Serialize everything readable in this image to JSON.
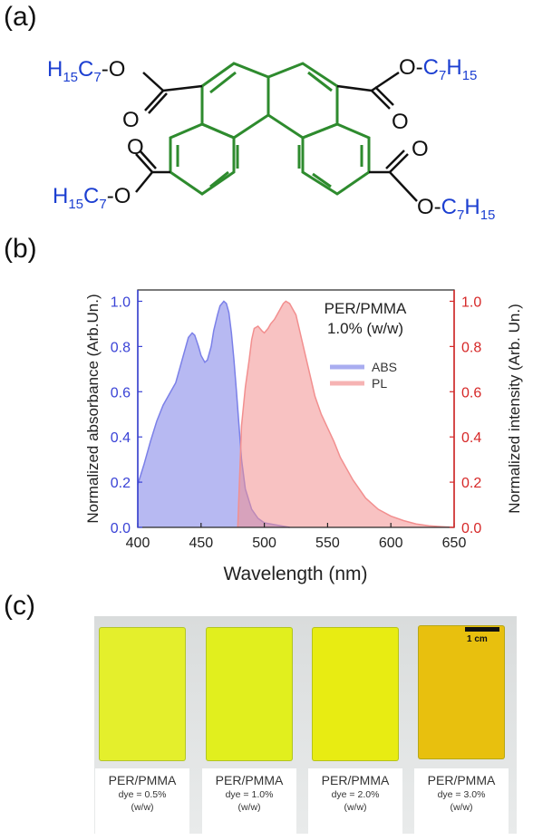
{
  "panels": {
    "a": "(a)",
    "b": "(b)",
    "c": "(c)"
  },
  "molecule": {
    "substituent_top_left": "H15C7-O",
    "substituent_top_right": "O-C7H15",
    "substituent_bottom_left": "H15C7-O",
    "substituent_bottom_right": "O-C7H15",
    "carbonyl_label": "O",
    "colors": {
      "core": "#2e8b2e",
      "alkyl": "#1c3fd1",
      "carbonyl": "#111111"
    }
  },
  "chart_data": {
    "type": "area",
    "annotation_line1": "PER/PMMA",
    "annotation_line2": "1.0% (w/w)",
    "xlabel": "Wavelength (nm)",
    "ylabel_left": "Normalized absorbance (Arb.Un.)",
    "ylabel_right": "Normalized intensity (Arb. Un.)",
    "xlim": [
      400,
      650
    ],
    "ylim": [
      0,
      1.05
    ],
    "xticks": [
      "400",
      "450",
      "500",
      "550",
      "600",
      "650"
    ],
    "yticks_left": [
      "0.0",
      "0.2",
      "0.4",
      "0.6",
      "0.8",
      "1.0"
    ],
    "yticks_right": [
      "0.0",
      "0.2",
      "0.4",
      "0.6",
      "0.8",
      "1.0"
    ],
    "legend_position": "right-middle",
    "series": [
      {
        "name": "ABS",
        "color": "#7b80e8",
        "axis": "left",
        "x": [
          400,
          405,
          410,
          415,
          420,
          425,
          430,
          435,
          440,
          443,
          445,
          448,
          450,
          453,
          455,
          458,
          460,
          463,
          465,
          468,
          470,
          472,
          474,
          476,
          478,
          480,
          482,
          485,
          490,
          495,
          500,
          510,
          520
        ],
        "y": [
          0.19,
          0.28,
          0.38,
          0.47,
          0.54,
          0.59,
          0.64,
          0.74,
          0.84,
          0.86,
          0.85,
          0.8,
          0.76,
          0.73,
          0.74,
          0.8,
          0.87,
          0.94,
          0.98,
          1.0,
          0.99,
          0.95,
          0.86,
          0.74,
          0.6,
          0.45,
          0.3,
          0.17,
          0.08,
          0.04,
          0.02,
          0.01,
          0.0
        ]
      },
      {
        "name": "PL",
        "color": "#f28f8f",
        "axis": "right",
        "x": [
          479,
          480,
          482,
          485,
          488,
          490,
          492,
          495,
          498,
          500,
          503,
          505,
          508,
          510,
          513,
          515,
          517,
          520,
          522,
          525,
          530,
          535,
          540,
          545,
          550,
          555,
          560,
          570,
          580,
          590,
          600,
          610,
          620,
          630,
          640,
          650
        ],
        "y": [
          0.0,
          0.15,
          0.45,
          0.62,
          0.74,
          0.83,
          0.88,
          0.89,
          0.87,
          0.86,
          0.88,
          0.9,
          0.92,
          0.94,
          0.97,
          0.99,
          1.0,
          0.99,
          0.97,
          0.94,
          0.82,
          0.7,
          0.58,
          0.5,
          0.44,
          0.38,
          0.31,
          0.21,
          0.13,
          0.08,
          0.05,
          0.03,
          0.015,
          0.007,
          0.003,
          0.0
        ]
      }
    ]
  },
  "photo": {
    "scale_label": "1 cm",
    "samples": [
      {
        "label": "PER/PMMA",
        "dye": "dye = 0.5%",
        "unit": "(w/w)",
        "color": "#e4ef2c"
      },
      {
        "label": "PER/PMMA",
        "dye": "dye = 1.0%",
        "unit": "(w/w)",
        "color": "#e1ef1e"
      },
      {
        "label": "PER/PMMA",
        "dye": "dye = 2.0%",
        "unit": "(w/w)",
        "color": "#e8ec12"
      },
      {
        "label": "PER/PMMA",
        "dye": "dye = 3.0%",
        "unit": "(w/w)",
        "color": "#e8c00e"
      }
    ]
  }
}
